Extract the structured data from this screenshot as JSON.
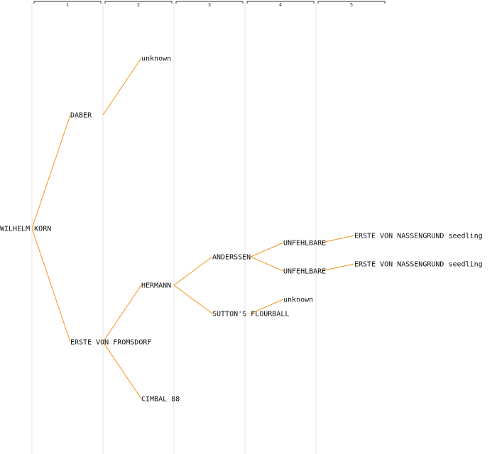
{
  "generations": [
    "1",
    "2",
    "3",
    "4",
    "5"
  ],
  "colors": {
    "edge": "#f5921e",
    "divider": "#e6e6e6",
    "text": "#111111"
  },
  "nodes": [
    {
      "id": "n0",
      "label": "WILHELM KORN",
      "gen": 0
    },
    {
      "id": "n1",
      "label": "DABER",
      "gen": 1
    },
    {
      "id": "n2",
      "label": "ERSTE VON FROMSDORF",
      "gen": 1
    },
    {
      "id": "n3",
      "label": "unknown",
      "gen": 2
    },
    {
      "id": "n4",
      "label": "HERMANN",
      "gen": 2
    },
    {
      "id": "n5",
      "label": "CIMBAL 88",
      "gen": 2
    },
    {
      "id": "n6",
      "label": "ANDERSSEN",
      "gen": 3
    },
    {
      "id": "n7",
      "label": "SUTTON'S FLOURBALL",
      "gen": 3
    },
    {
      "id": "n8",
      "label": "UNFEHLBARE",
      "gen": 4
    },
    {
      "id": "n9",
      "label": "UNFEHLBARE",
      "gen": 4
    },
    {
      "id": "n10",
      "label": "unknown",
      "gen": 4
    },
    {
      "id": "n11",
      "label": "ERSTE VON NASSENGRUND seedling",
      "gen": 5
    },
    {
      "id": "n12",
      "label": "ERSTE VON NASSENGRUND seedling",
      "gen": 5
    }
  ],
  "edges": [
    [
      "n0",
      "n1"
    ],
    [
      "n0",
      "n2"
    ],
    [
      "n1",
      "n3"
    ],
    [
      "n2",
      "n4"
    ],
    [
      "n2",
      "n5"
    ],
    [
      "n4",
      "n6"
    ],
    [
      "n4",
      "n7"
    ],
    [
      "n6",
      "n8"
    ],
    [
      "n6",
      "n9"
    ],
    [
      "n7",
      "n10"
    ],
    [
      "n8",
      "n11"
    ],
    [
      "n9",
      "n12"
    ]
  ]
}
